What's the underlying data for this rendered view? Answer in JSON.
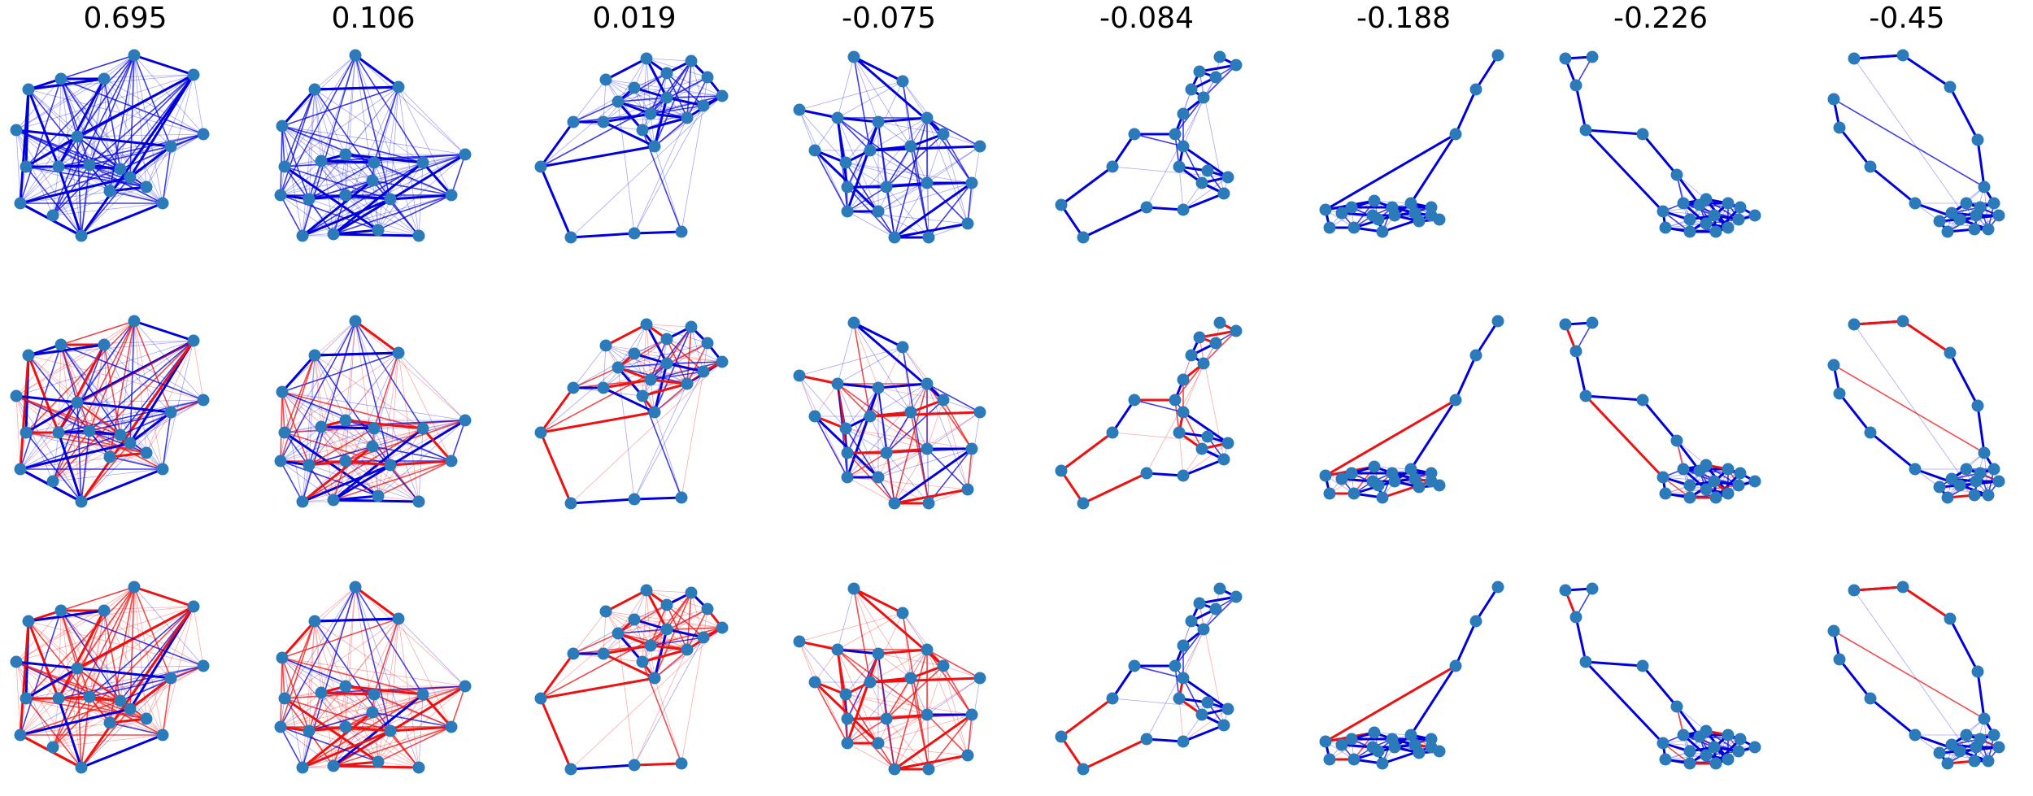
{
  "columns": [
    {
      "title": "0.695",
      "type": "dense"
    },
    {
      "title": "0.106",
      "type": "dense_ring"
    },
    {
      "title": "0.019",
      "type": "cluster_tail"
    },
    {
      "title": "-0.075",
      "type": "cluster_corner"
    },
    {
      "title": "-0.084",
      "type": "two_clusters"
    },
    {
      "title": "-0.188",
      "type": "flat_cluster_tail"
    },
    {
      "title": "-0.226",
      "type": "loop_cluster"
    },
    {
      "title": "-0.45",
      "type": "ring_cluster"
    }
  ],
  "rows": [
    {
      "palette": "blue"
    },
    {
      "palette": "mixed"
    },
    {
      "palette": "red"
    }
  ],
  "colors": {
    "node": "#2b7bba",
    "positive_edge": "#0000dd",
    "negative_edge": "#ee1111",
    "background": "#ffffff"
  }
}
